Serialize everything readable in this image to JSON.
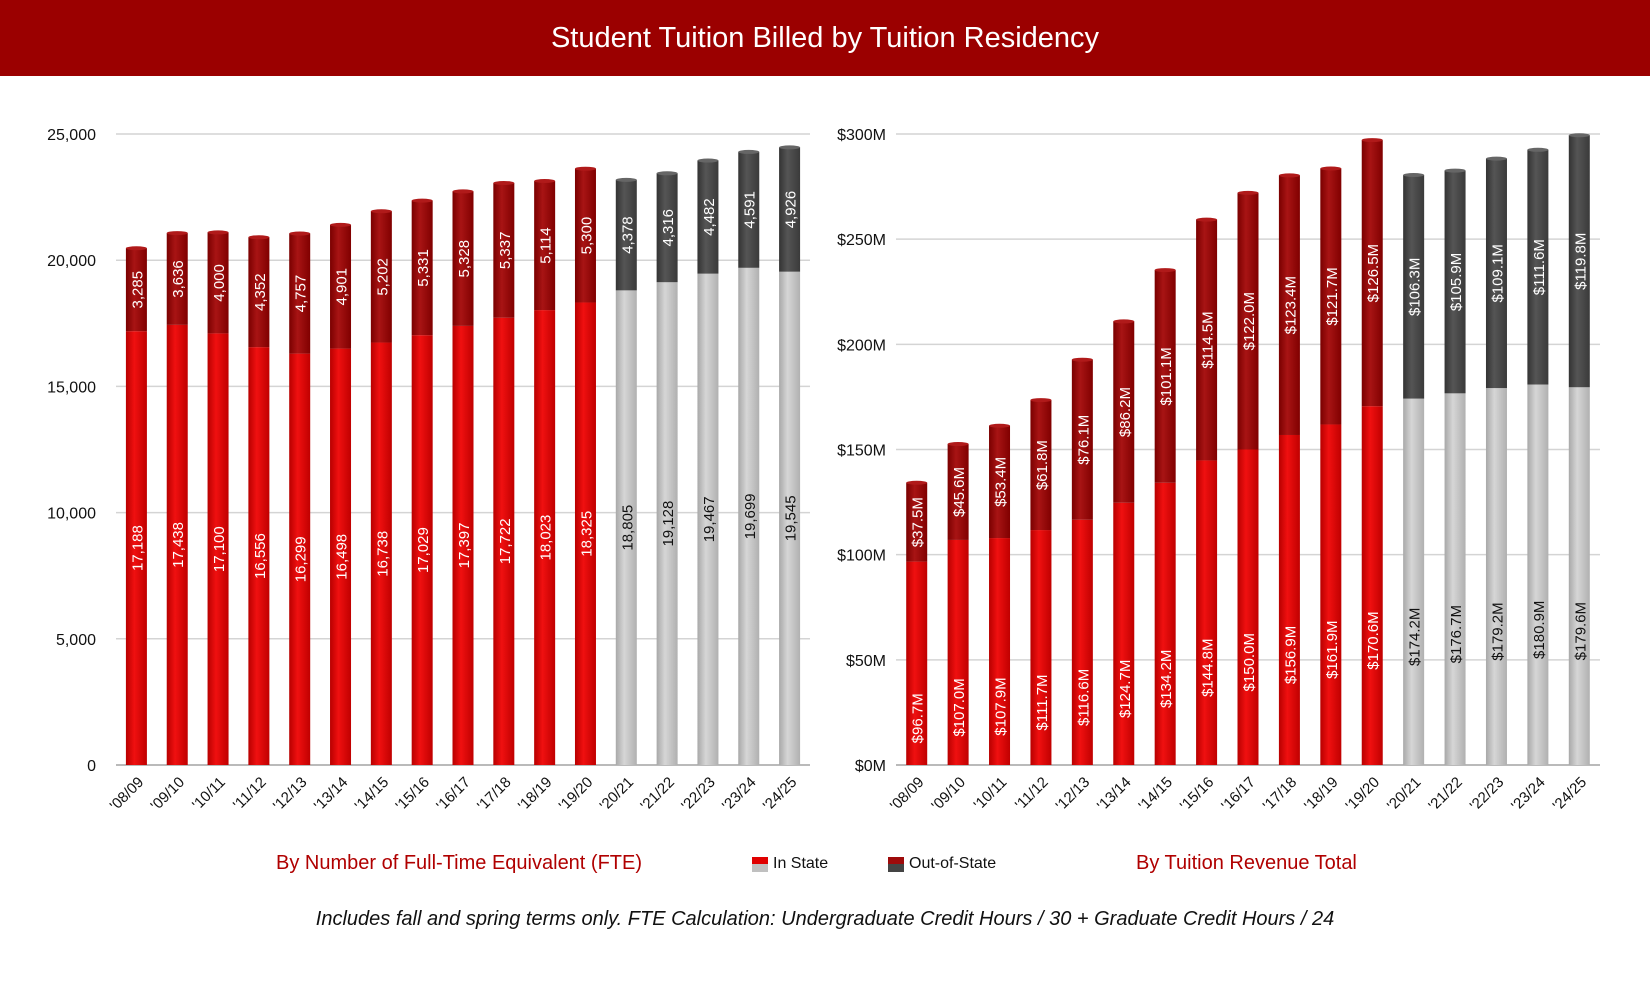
{
  "title": "Student Tuition Billed by Tuition Residency",
  "footnote": "Includes fall and spring terms only. FTE Calculation: Undergraduate Credit Hours / 30 + Graduate Credit Hours / 24",
  "legend": [
    {
      "label": "In State",
      "colors": [
        "#e00000",
        "#c0c0c0"
      ]
    },
    {
      "label": "Out-of-State",
      "colors": [
        "#9e0a0a",
        "#444444"
      ]
    }
  ],
  "colors": {
    "in_state_red": "#e00000",
    "out_state_red": "#9e0a0a",
    "in_state_gray": "#c4c4c4",
    "out_state_gray": "#474747",
    "title_bar": "#9b0000"
  },
  "chart_data": [
    {
      "type": "bar",
      "stacked": true,
      "subtitle": "By Number of Full-Time Equivalent (FTE)",
      "categories": [
        "'08/09",
        "'09/10",
        "'10/11",
        "'11/12",
        "'12/13",
        "'13/14",
        "'14/15",
        "'15/16",
        "'16/17",
        "'17/18",
        "'18/19",
        "'19/20",
        "'20/21",
        "'21/22",
        "'22/23",
        "'23/24",
        "'24/25"
      ],
      "series": [
        {
          "name": "In State",
          "values": [
            17188,
            17438,
            17100,
            16556,
            16299,
            16498,
            16738,
            17029,
            17397,
            17722,
            18023,
            18325,
            18805,
            19128,
            19467,
            19699,
            19545
          ],
          "labels": [
            "17,188",
            "17,438",
            "17,100",
            "16,556",
            "16,299",
            "16,498",
            "16,738",
            "17,029",
            "17,397",
            "17,722",
            "18,023",
            "18,325",
            "18,805",
            "19,128",
            "19,467",
            "19,699",
            "19,545"
          ]
        },
        {
          "name": "Out-of-State",
          "values": [
            3285,
            3636,
            4000,
            4352,
            4757,
            4901,
            5202,
            5331,
            5328,
            5337,
            5114,
            5300,
            4378,
            4316,
            4482,
            4591,
            4926
          ],
          "labels": [
            "3,285",
            "3,636",
            "4,000",
            "4,352",
            "4,757",
            "4,901",
            "5,202",
            "5,331",
            "5,328",
            "5,337",
            "5,114",
            "5,300",
            "4,378",
            "4,316",
            "4,482",
            "4,591",
            "4,926"
          ]
        }
      ],
      "ylim": [
        0,
        25000
      ],
      "yticks": [
        0,
        5000,
        10000,
        15000,
        20000,
        25000
      ],
      "ytick_labels": [
        "0",
        "5,000",
        "10,000",
        "15,000",
        "20,000",
        "25,000"
      ],
      "grid": true,
      "gray_from_index": 12
    },
    {
      "type": "bar",
      "stacked": true,
      "subtitle": "By Tuition Revenue Total",
      "categories": [
        "'08/09",
        "'09/10",
        "'10/11",
        "'11/12",
        "'12/13",
        "'13/14",
        "'14/15",
        "'15/16",
        "'16/17",
        "'17/18",
        "'18/19",
        "'19/20",
        "'20/21",
        "'21/22",
        "'22/23",
        "'23/24",
        "'24/25"
      ],
      "series": [
        {
          "name": "In State",
          "values": [
            96.7,
            107.0,
            107.9,
            111.7,
            116.6,
            124.7,
            134.2,
            144.8,
            150.0,
            156.9,
            161.9,
            170.6,
            174.2,
            176.7,
            179.2,
            180.9,
            179.6
          ],
          "labels": [
            "$96.7M",
            "$107.0M",
            "$107.9M",
            "$111.7M",
            "$116.6M",
            "$124.7M",
            "$134.2M",
            "$144.8M",
            "$150.0M",
            "$156.9M",
            "$161.9M",
            "$170.6M",
            "$174.2M",
            "$176.7M",
            "$179.2M",
            "$180.9M",
            "$179.6M"
          ]
        },
        {
          "name": "Out-of-State",
          "values": [
            37.5,
            45.6,
            53.4,
            61.8,
            76.1,
            86.2,
            101.1,
            114.5,
            122.0,
            123.4,
            121.7,
            126.5,
            106.3,
            105.9,
            109.1,
            111.6,
            119.8
          ],
          "labels": [
            "$37.5M",
            "$45.6M",
            "$53.4M",
            "$61.8M",
            "$76.1M",
            "$86.2M",
            "$101.1M",
            "$114.5M",
            "$122.0M",
            "$123.4M",
            "$121.7M",
            "$126.5M",
            "$106.3M",
            "$105.9M",
            "$109.1M",
            "$111.6M",
            "$119.8M"
          ]
        }
      ],
      "ylim": [
        0,
        300
      ],
      "yticks": [
        0,
        50,
        100,
        150,
        200,
        250,
        300
      ],
      "ytick_labels": [
        "$0M",
        "$50M",
        "$100M",
        "$150M",
        "$200M",
        "$250M",
        "$300M"
      ],
      "grid": true,
      "gray_from_index": 12
    }
  ]
}
